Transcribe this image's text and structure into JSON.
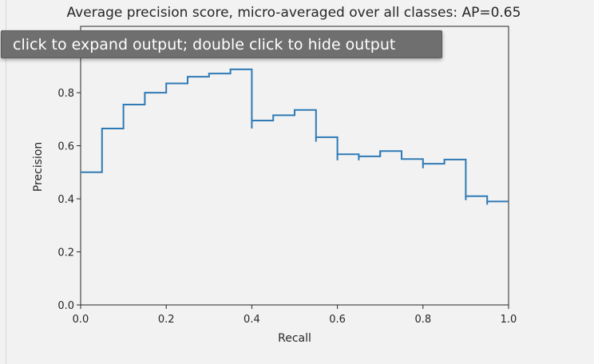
{
  "output_area": {
    "tooltip_text": "click to expand output; double click to hide output"
  },
  "chart_data": {
    "type": "line",
    "title": "Average precision score, micro-averaged over all classes: AP=0.65",
    "xlabel": "Recall",
    "ylabel": "Precision",
    "xlim": [
      0.0,
      1.0
    ],
    "ylim": [
      0.0,
      1.05
    ],
    "xticks": [
      "0.0",
      "0.2",
      "0.4",
      "0.6",
      "0.8",
      "1.0"
    ],
    "yticks": [
      "0.0",
      "0.2",
      "0.4",
      "0.6",
      "0.8"
    ],
    "step_where": "post",
    "line_color": "#2f7ab5",
    "grid": false,
    "series": [
      {
        "recall": [
          0.0,
          0.05,
          0.1,
          0.15,
          0.2,
          0.25,
          0.3,
          0.35,
          0.4,
          0.45,
          0.5,
          0.55,
          0.6,
          0.65,
          0.7,
          0.75,
          0.8,
          0.85,
          0.9,
          0.95,
          1.0
        ],
        "precision": [
          0.5,
          0.665,
          0.755,
          0.8,
          0.835,
          0.86,
          0.872,
          0.888,
          0.695,
          0.715,
          0.735,
          0.632,
          0.568,
          0.56,
          0.58,
          0.55,
          0.532,
          0.548,
          0.41,
          0.39,
          0.39
        ]
      }
    ],
    "minor_drops": [
      {
        "x": 0.4,
        "from": 0.695,
        "to": 0.665
      },
      {
        "x": 0.55,
        "from": 0.632,
        "to": 0.615
      },
      {
        "x": 0.6,
        "from": 0.568,
        "to": 0.545
      },
      {
        "x": 0.65,
        "from": 0.56,
        "to": 0.545
      },
      {
        "x": 0.7,
        "from": 0.58,
        "to": 0.56
      },
      {
        "x": 0.8,
        "from": 0.532,
        "to": 0.515
      },
      {
        "x": 0.9,
        "from": 0.41,
        "to": 0.395
      },
      {
        "x": 0.95,
        "from": 0.39,
        "to": 0.378
      }
    ]
  }
}
